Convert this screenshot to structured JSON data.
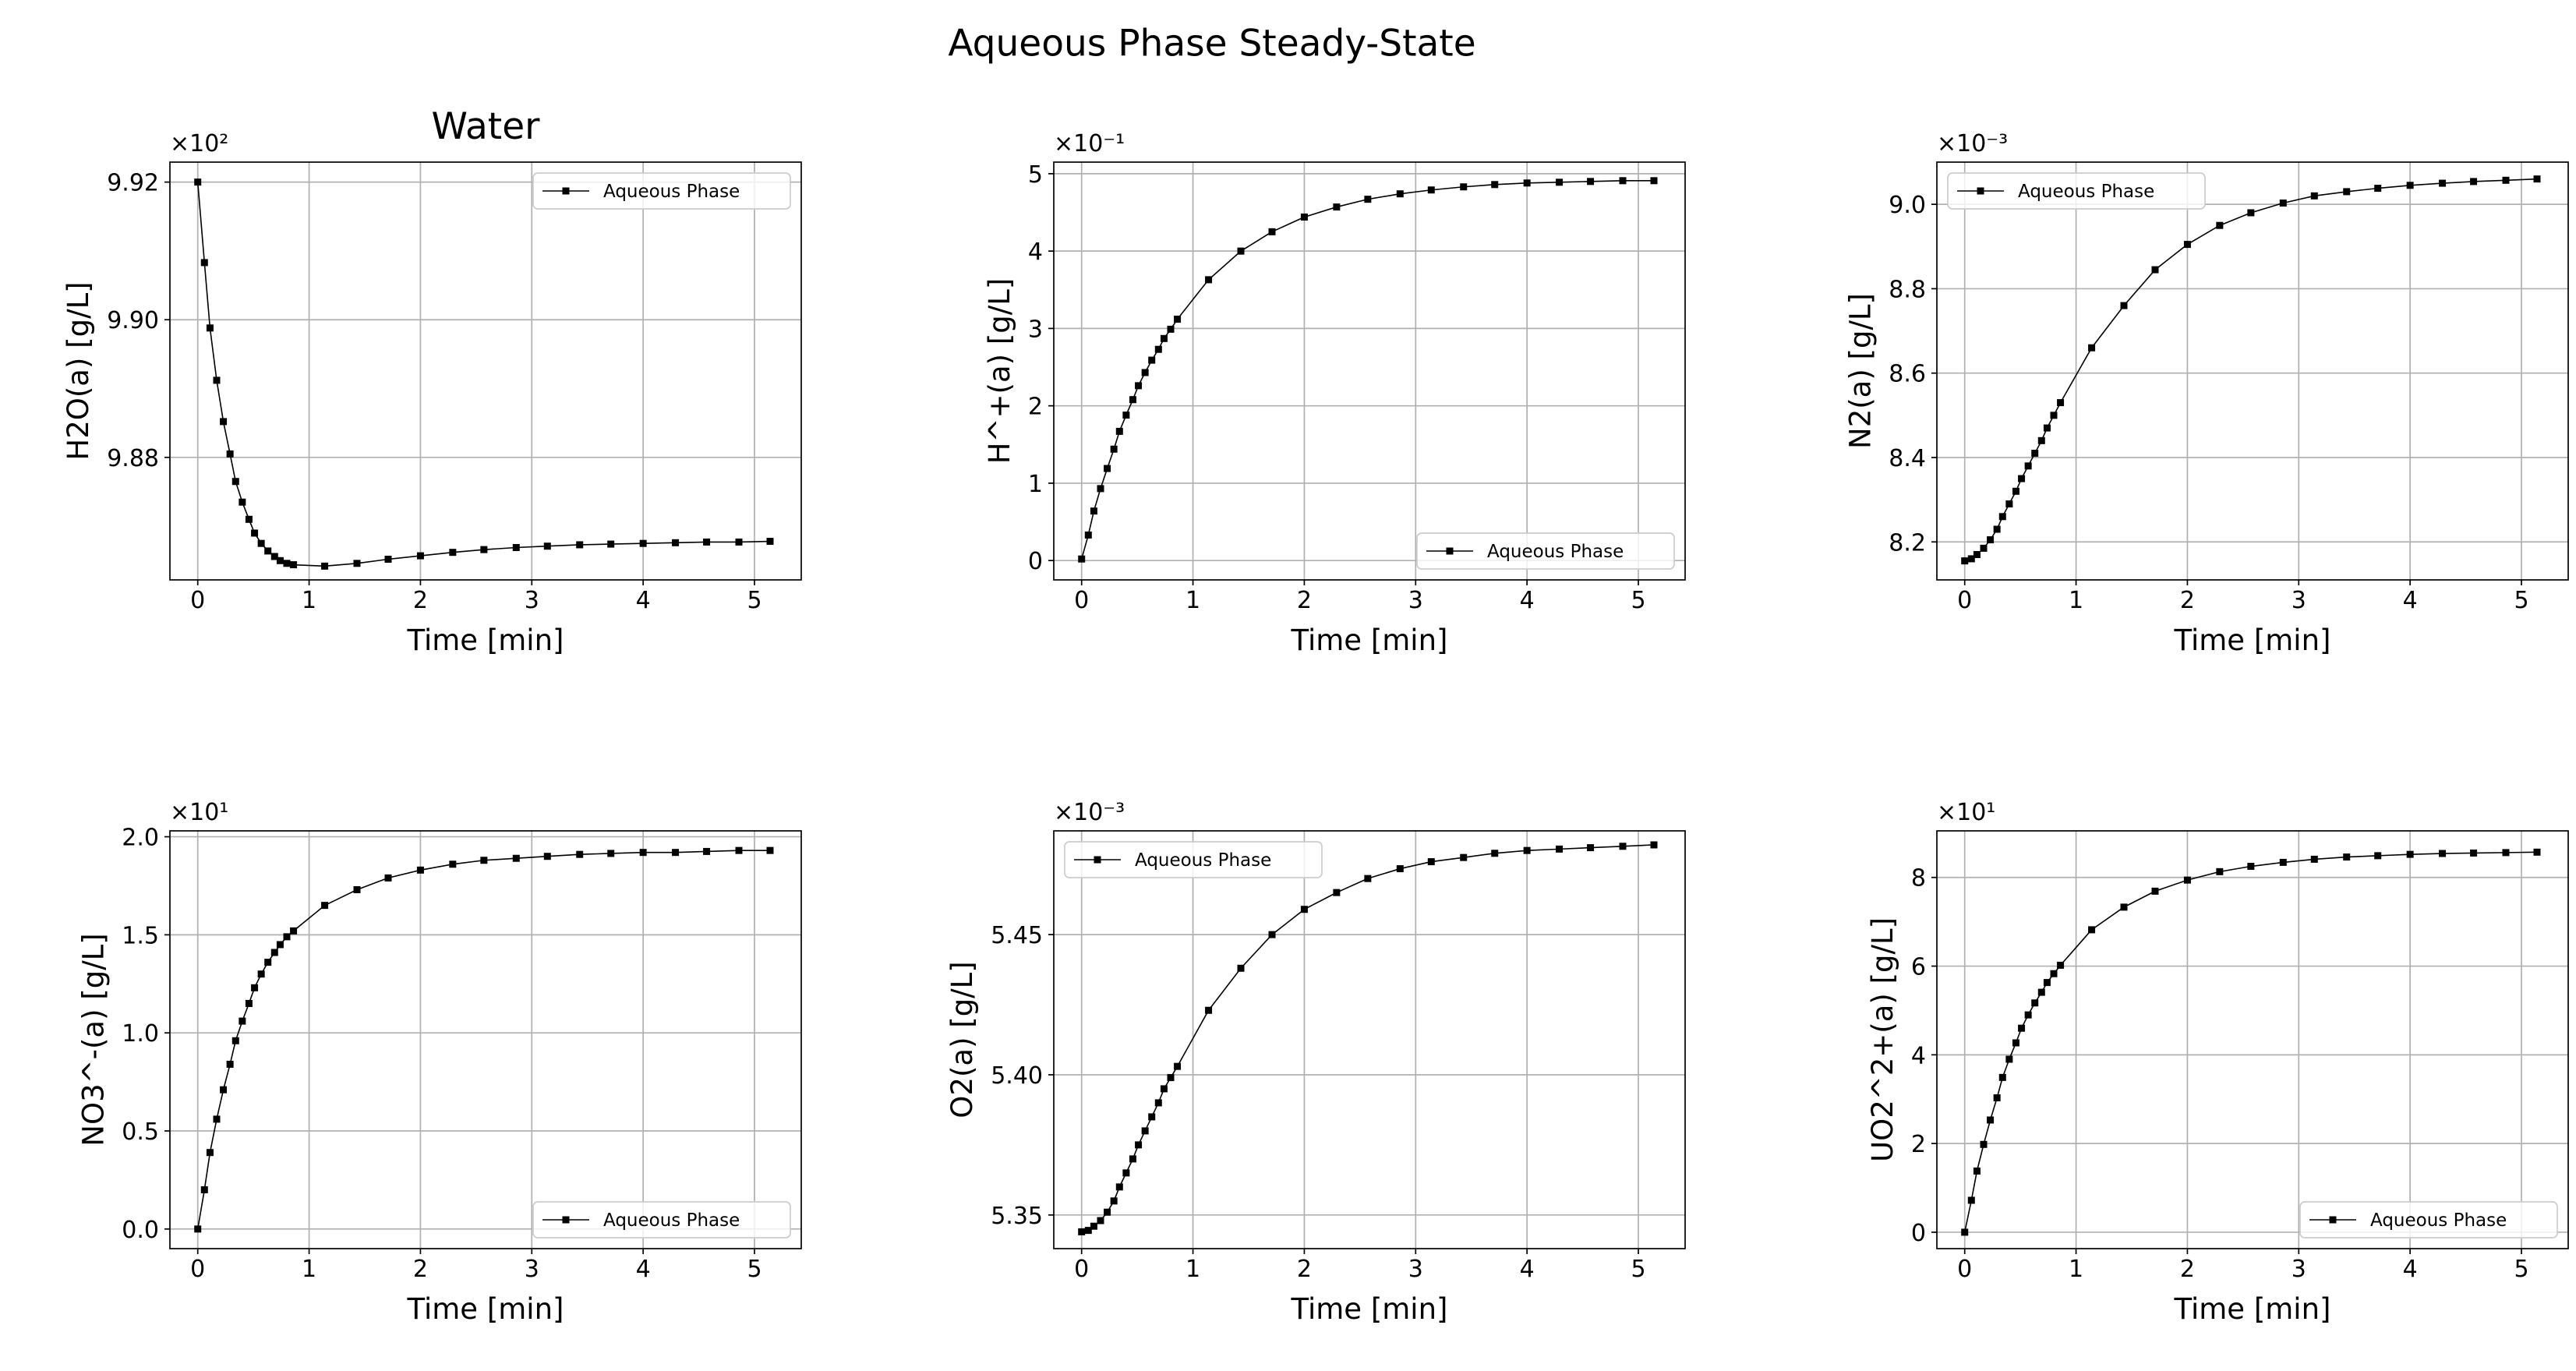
{
  "title": "Aqueous Phase Steady-State",
  "chart_data": [
    {
      "type": "line",
      "title": "Water",
      "xlabel": "Time [min]",
      "ylabel": "H2O(a) [g/L]",
      "offset_text": "×10²",
      "x": [
        0,
        0.06,
        0.11,
        0.17,
        0.23,
        0.29,
        0.34,
        0.4,
        0.46,
        0.51,
        0.57,
        0.63,
        0.69,
        0.74,
        0.8,
        0.86,
        1.14,
        1.43,
        1.71,
        2.0,
        2.29,
        2.57,
        2.86,
        3.14,
        3.43,
        3.71,
        4.0,
        4.29,
        4.57,
        4.86,
        5.14
      ],
      "series": [
        {
          "name": "Aqueous Phase",
          "color": "#000000",
          "values": [
            9.92,
            9.9083,
            9.8988,
            9.8912,
            9.8852,
            9.8805,
            9.8765,
            9.8735,
            9.871,
            9.869,
            9.8675,
            9.8664,
            9.8656,
            9.865,
            9.8646,
            9.8644,
            9.8642,
            9.8646,
            9.8652,
            9.8657,
            9.8662,
            9.8666,
            9.8669,
            9.8671,
            9.8673,
            9.8674,
            9.8675,
            9.8676,
            9.8677,
            9.8677,
            9.8678
          ]
        }
      ],
      "xlim": [
        -0.25,
        5.42
      ],
      "ylim": [
        9.8622,
        9.9229
      ],
      "xticks": [
        0,
        1,
        2,
        3,
        4,
        5
      ],
      "yticks": [
        9.88,
        {
          "value": 9.9,
          "label": "9.90"
        },
        9.92
      ],
      "grid": true,
      "legend": "upper right"
    },
    {
      "type": "line",
      "xlabel": "Time [min]",
      "ylabel": "H^+(a) [g/L]",
      "offset_text": "×10⁻¹",
      "x": [
        0,
        0.06,
        0.11,
        0.17,
        0.23,
        0.29,
        0.34,
        0.4,
        0.46,
        0.51,
        0.57,
        0.63,
        0.69,
        0.74,
        0.8,
        0.86,
        1.14,
        1.43,
        1.71,
        2.0,
        2.29,
        2.57,
        2.86,
        3.14,
        3.43,
        3.71,
        4.0,
        4.29,
        4.57,
        4.86,
        5.14
      ],
      "series": [
        {
          "name": "Aqueous Phase",
          "color": "#000000",
          "values": [
            0.02,
            0.33,
            0.64,
            0.93,
            1.19,
            1.44,
            1.67,
            1.88,
            2.08,
            2.26,
            2.43,
            2.59,
            2.73,
            2.87,
            2.99,
            3.12,
            3.63,
            4.0,
            4.25,
            4.44,
            4.57,
            4.67,
            4.74,
            4.79,
            4.83,
            4.86,
            4.88,
            4.89,
            4.9,
            4.91,
            4.91
          ]
        }
      ],
      "xlim": [
        -0.25,
        5.42
      ],
      "ylim": [
        -0.25,
        5.15
      ],
      "xticks": [
        0,
        1,
        2,
        3,
        4,
        5
      ],
      "yticks": [
        0,
        1,
        2,
        3,
        4,
        5
      ],
      "grid": true,
      "legend": "lower right"
    },
    {
      "type": "line",
      "xlabel": "Time [min]",
      "ylabel": "N2(a) [g/L]",
      "offset_text": "×10⁻³",
      "x": [
        0,
        0.06,
        0.11,
        0.17,
        0.23,
        0.29,
        0.34,
        0.4,
        0.46,
        0.51,
        0.57,
        0.63,
        0.69,
        0.74,
        0.8,
        0.86,
        1.14,
        1.43,
        1.71,
        2.0,
        2.29,
        2.57,
        2.86,
        3.14,
        3.43,
        3.71,
        4.0,
        4.29,
        4.57,
        4.86,
        5.14
      ],
      "series": [
        {
          "name": "Aqueous Phase",
          "color": "#000000",
          "values": [
            8.155,
            8.16,
            8.17,
            8.185,
            8.205,
            8.23,
            8.26,
            8.29,
            8.32,
            8.35,
            8.38,
            8.41,
            8.44,
            8.47,
            8.5,
            8.53,
            8.66,
            8.76,
            8.845,
            8.905,
            8.95,
            8.98,
            9.003,
            9.02,
            9.03,
            9.038,
            9.045,
            9.05,
            9.054,
            9.057,
            9.06
          ]
        }
      ],
      "xlim": [
        -0.25,
        5.42
      ],
      "ylim": [
        8.11,
        9.1
      ],
      "xticks": [
        0,
        1,
        2,
        3,
        4,
        5
      ],
      "yticks": [
        8.2,
        8.4,
        8.6,
        8.8,
        {
          "value": 9,
          "label": "9.0"
        }
      ],
      "grid": true,
      "legend": "upper left"
    },
    {
      "type": "line",
      "xlabel": "Time [min]",
      "ylabel": "NO3^-(a) [g/L]",
      "offset_text": "×10¹",
      "x": [
        0,
        0.06,
        0.11,
        0.17,
        0.23,
        0.29,
        0.34,
        0.4,
        0.46,
        0.51,
        0.57,
        0.63,
        0.69,
        0.74,
        0.8,
        0.86,
        1.14,
        1.43,
        1.71,
        2.0,
        2.29,
        2.57,
        2.86,
        3.14,
        3.43,
        3.71,
        4.0,
        4.29,
        4.57,
        4.86,
        5.14
      ],
      "series": [
        {
          "name": "Aqueous Phase",
          "color": "#000000",
          "values": [
            0.0,
            0.2,
            0.39,
            0.56,
            0.71,
            0.84,
            0.96,
            1.06,
            1.15,
            1.23,
            1.3,
            1.36,
            1.41,
            1.45,
            1.49,
            1.52,
            1.65,
            1.73,
            1.79,
            1.83,
            1.86,
            1.88,
            1.89,
            1.9,
            1.91,
            1.915,
            1.92,
            1.92,
            1.925,
            1.93,
            1.93
          ]
        }
      ],
      "xlim": [
        -0.25,
        5.42
      ],
      "ylim": [
        -0.1,
        2.03
      ],
      "xticks": [
        0,
        1,
        2,
        3,
        4,
        5
      ],
      "yticks": [
        {
          "value": 0,
          "label": "0.0"
        },
        0.5,
        {
          "value": 1,
          "label": "1.0"
        },
        1.5,
        {
          "value": 2,
          "label": "2.0"
        }
      ],
      "grid": true,
      "legend": "lower right"
    },
    {
      "type": "line",
      "xlabel": "Time [min]",
      "ylabel": "O2(a) [g/L]",
      "offset_text": "×10⁻³",
      "x": [
        0,
        0.06,
        0.11,
        0.17,
        0.23,
        0.29,
        0.34,
        0.4,
        0.46,
        0.51,
        0.57,
        0.63,
        0.69,
        0.74,
        0.8,
        0.86,
        1.14,
        1.43,
        1.71,
        2.0,
        2.29,
        2.57,
        2.86,
        3.14,
        3.43,
        3.71,
        4.0,
        4.29,
        4.57,
        4.86,
        5.14
      ],
      "series": [
        {
          "name": "Aqueous Phase",
          "color": "#000000",
          "values": [
            5.344,
            5.3445,
            5.346,
            5.348,
            5.351,
            5.355,
            5.36,
            5.365,
            5.37,
            5.375,
            5.38,
            5.385,
            5.39,
            5.395,
            5.399,
            5.403,
            5.423,
            5.438,
            5.45,
            5.459,
            5.465,
            5.47,
            5.4735,
            5.476,
            5.4775,
            5.479,
            5.48,
            5.4805,
            5.481,
            5.4815,
            5.482
          ]
        }
      ],
      "xlim": [
        -0.25,
        5.42
      ],
      "ylim": [
        5.338,
        5.487
      ],
      "xticks": [
        0,
        1,
        2,
        3,
        4,
        5
      ],
      "yticks": [
        5.35,
        {
          "value": 5.4,
          "label": "5.40"
        },
        5.45
      ],
      "grid": true,
      "legend": "upper left"
    },
    {
      "type": "line",
      "xlabel": "Time [min]",
      "ylabel": "UO2^2+(a) [g/L]",
      "offset_text": "×10¹",
      "x": [
        0,
        0.06,
        0.11,
        0.17,
        0.23,
        0.29,
        0.34,
        0.4,
        0.46,
        0.51,
        0.57,
        0.63,
        0.69,
        0.74,
        0.8,
        0.86,
        1.14,
        1.43,
        1.71,
        2.0,
        2.29,
        2.57,
        2.86,
        3.14,
        3.43,
        3.71,
        4.0,
        4.29,
        4.57,
        4.86,
        5.14
      ],
      "series": [
        {
          "name": "Aqueous Phase",
          "color": "#000000",
          "values": [
            0.0,
            0.72,
            1.38,
            1.98,
            2.53,
            3.03,
            3.49,
            3.9,
            4.27,
            4.6,
            4.9,
            5.17,
            5.41,
            5.63,
            5.83,
            6.02,
            6.82,
            7.33,
            7.69,
            7.94,
            8.13,
            8.25,
            8.34,
            8.41,
            8.46,
            8.49,
            8.52,
            8.54,
            8.55,
            8.56,
            8.57
          ]
        }
      ],
      "xlim": [
        -0.25,
        5.42
      ],
      "ylim": [
        -0.37,
        9.05
      ],
      "xticks": [
        0,
        1,
        2,
        3,
        4,
        5
      ],
      "yticks": [
        0,
        2,
        4,
        6,
        8
      ],
      "grid": true,
      "legend": "lower right"
    }
  ]
}
